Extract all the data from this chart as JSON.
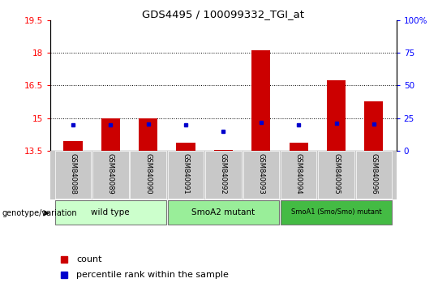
{
  "title": "GDS4495 / 100099332_TGI_at",
  "samples": [
    "GSM840088",
    "GSM840089",
    "GSM840090",
    "GSM840091",
    "GSM840092",
    "GSM840093",
    "GSM840094",
    "GSM840095",
    "GSM840096"
  ],
  "count_values": [
    13.95,
    14.98,
    14.98,
    13.88,
    13.55,
    18.12,
    13.88,
    16.72,
    15.78
  ],
  "percentile_values": [
    20.0,
    20.0,
    20.5,
    19.5,
    14.5,
    21.5,
    19.5,
    21.0,
    20.5
  ],
  "ylim_left": [
    13.5,
    19.5
  ],
  "ylim_right": [
    0,
    100
  ],
  "yticks_left": [
    13.5,
    15.0,
    16.5,
    18.0,
    19.5
  ],
  "yticks_right": [
    0,
    25,
    50,
    75,
    100
  ],
  "ytick_labels_left": [
    "13.5",
    "15",
    "16.5",
    "18",
    "19.5"
  ],
  "ytick_labels_right": [
    "0",
    "25",
    "50",
    "75",
    "100%"
  ],
  "bar_color": "#cc0000",
  "percentile_color": "#0000cc",
  "bar_width": 0.5,
  "groups": [
    {
      "label": "wild type",
      "indices": [
        0,
        1,
        2
      ],
      "color": "#ccffcc"
    },
    {
      "label": "SmoA2 mutant",
      "indices": [
        3,
        4,
        5
      ],
      "color": "#99ee99"
    },
    {
      "label": "SmoA1 (Smo/Smo) mutant",
      "indices": [
        6,
        7,
        8
      ],
      "color": "#44bb44"
    }
  ],
  "genotype_label": "genotype/variation",
  "legend_count_label": "count",
  "legend_percentile_label": "percentile rank within the sample",
  "background_color": "#ffffff",
  "plot_bg_color": "#ffffff",
  "sample_bg_color": "#c8c8c8"
}
